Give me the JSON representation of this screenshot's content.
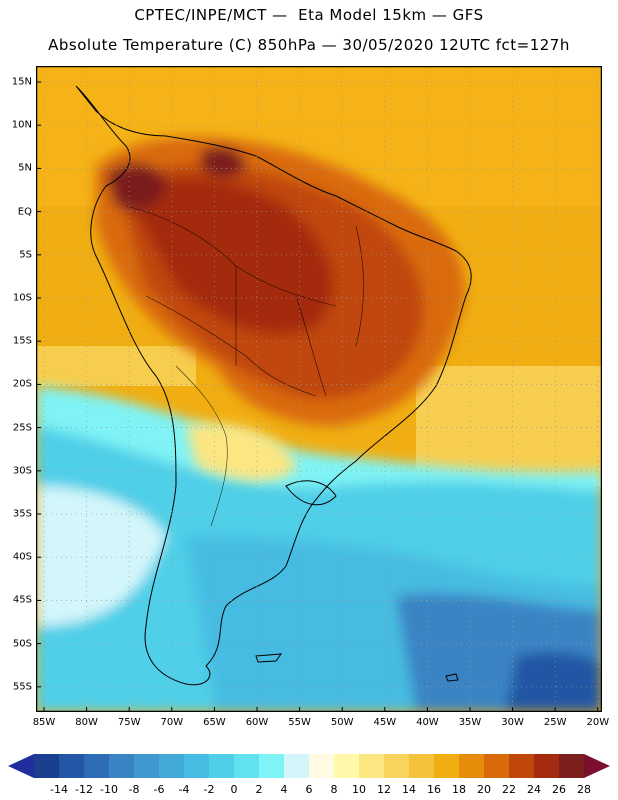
{
  "header": {
    "line1": "CPTEC/INPE/MCT —  Eta Model 15km — GFS",
    "line2": "Absolute Temperature (C) 850hPa — 30/05/2020 12UTC fct=127h"
  },
  "map": {
    "lat_labels": [
      "15N",
      "10N",
      "5N",
      "EQ",
      "5S",
      "10S",
      "15S",
      "20S",
      "25S",
      "30S",
      "35S",
      "40S",
      "45S",
      "50S",
      "55S"
    ],
    "lon_labels": [
      "85W",
      "80W",
      "75W",
      "70W",
      "65W",
      "60W",
      "55W",
      "50W",
      "45W",
      "40W",
      "35W",
      "30W",
      "25W",
      "20W"
    ],
    "region": "South America",
    "field_colors": {
      "hot": "#7a1f1b",
      "warm": "#b8400f",
      "mid": "#e8a20c",
      "ocean_warm": "#f1ae12",
      "cool": "#43c2e0",
      "cold": "#2460a8"
    }
  },
  "colorbar": {
    "labels": [
      "-14",
      "-12",
      "-10",
      "-8",
      "-6",
      "-4",
      "-2",
      "0",
      "2",
      "4",
      "6",
      "8",
      "10",
      "12",
      "14",
      "16",
      "18",
      "20",
      "22",
      "24",
      "26",
      "28"
    ],
    "colors": [
      "#1b3f8f",
      "#2356a4",
      "#2e6cb5",
      "#3a84c4",
      "#4197cf",
      "#43a9d9",
      "#46bce2",
      "#4fcfe8",
      "#62e2ee",
      "#7ff3f5",
      "#d3f6fa",
      "#fffbe3",
      "#fff8a8",
      "#fbe682",
      "#f8d45c",
      "#f5c23c",
      "#f1ae12",
      "#e78b0a",
      "#d96a09",
      "#c0470c",
      "#a42b10",
      "#7a1f1b"
    ],
    "low_end_color": "#1f2e9c",
    "high_end_color": "#7d0f2e"
  }
}
